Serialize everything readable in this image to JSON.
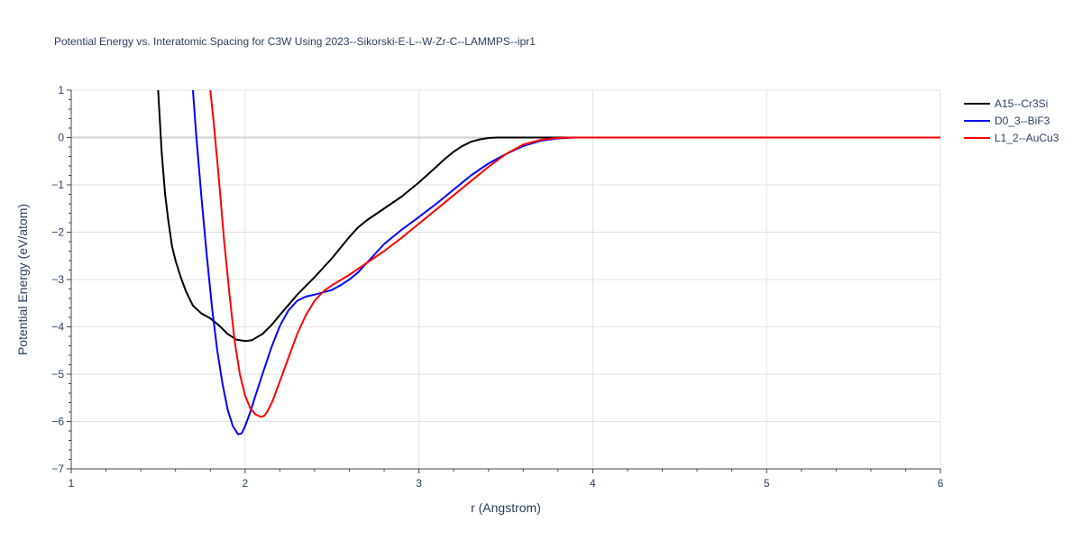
{
  "chart_data": {
    "type": "line",
    "title": "Potential Energy vs. Interatomic Spacing for C3W Using 2023--Sikorski-E-L--W-Zr-C--LAMMPS--ipr1",
    "xlabel": "r (Angstrom)",
    "ylabel": "Potential Energy (eV/atom)",
    "xlim": [
      1,
      6
    ],
    "ylim": [
      -7,
      1
    ],
    "x_ticks": [
      1,
      2,
      3,
      4,
      5,
      6
    ],
    "y_ticks": [
      1,
      0,
      -1,
      -2,
      -3,
      -4,
      -5,
      -6,
      -7
    ],
    "x_tick_labels": [
      "1",
      "2",
      "3",
      "4",
      "5",
      "6"
    ],
    "y_tick_labels": [
      "1",
      "0",
      "−1",
      "−2",
      "−3",
      "−4",
      "−5",
      "−6",
      "−7"
    ],
    "grid": true,
    "legend_position": "top-right",
    "series": [
      {
        "name": "A15--Cr3Si",
        "color": "#000000",
        "x": [
          1.5,
          1.52,
          1.54,
          1.56,
          1.58,
          1.6,
          1.63,
          1.66,
          1.7,
          1.75,
          1.8,
          1.85,
          1.9,
          1.95,
          2.0,
          2.04,
          2.1,
          2.15,
          2.2,
          2.3,
          2.4,
          2.5,
          2.6,
          2.65,
          2.7,
          2.8,
          2.9,
          3.0,
          3.1,
          3.15,
          3.2,
          3.25,
          3.3,
          3.35,
          3.4,
          3.45,
          3.5,
          3.6,
          3.7,
          3.8,
          3.9,
          4.0,
          4.5,
          5.0,
          5.5,
          6.0
        ],
        "y": [
          1.0,
          -0.3,
          -1.2,
          -1.8,
          -2.3,
          -2.6,
          -2.95,
          -3.25,
          -3.55,
          -3.72,
          -3.82,
          -3.97,
          -4.15,
          -4.27,
          -4.3,
          -4.28,
          -4.15,
          -3.97,
          -3.75,
          -3.32,
          -2.95,
          -2.55,
          -2.1,
          -1.9,
          -1.75,
          -1.5,
          -1.25,
          -0.95,
          -0.62,
          -0.45,
          -0.3,
          -0.18,
          -0.09,
          -0.04,
          -0.01,
          0.0,
          0.0,
          0.0,
          0.0,
          0.0,
          0.0,
          0.0,
          0.0,
          0.0,
          0.0,
          0.0
        ]
      },
      {
        "name": "D0_3--BiF3",
        "color": "#0000ff",
        "x": [
          1.7,
          1.72,
          1.75,
          1.78,
          1.81,
          1.84,
          1.87,
          1.9,
          1.93,
          1.96,
          1.98,
          2.0,
          2.03,
          2.06,
          2.1,
          2.15,
          2.2,
          2.25,
          2.3,
          2.35,
          2.4,
          2.5,
          2.55,
          2.6,
          2.65,
          2.7,
          2.8,
          2.9,
          3.0,
          3.1,
          3.2,
          3.3,
          3.4,
          3.5,
          3.6,
          3.7,
          3.8,
          3.9,
          4.0,
          4.5,
          5.0,
          5.5,
          6.0
        ],
        "y": [
          1.0,
          0.0,
          -1.3,
          -2.5,
          -3.6,
          -4.5,
          -5.2,
          -5.75,
          -6.1,
          -6.27,
          -6.25,
          -6.1,
          -5.8,
          -5.45,
          -5.0,
          -4.45,
          -3.98,
          -3.65,
          -3.45,
          -3.36,
          -3.32,
          -3.22,
          -3.12,
          -3.0,
          -2.85,
          -2.65,
          -2.25,
          -1.95,
          -1.68,
          -1.4,
          -1.1,
          -0.8,
          -0.55,
          -0.35,
          -0.18,
          -0.07,
          -0.02,
          0.0,
          0.0,
          0.0,
          0.0,
          0.0,
          0.0
        ]
      },
      {
        "name": "L1_2--AuCu3",
        "color": "#ff0000",
        "x": [
          1.8,
          1.82,
          1.85,
          1.88,
          1.91,
          1.94,
          1.97,
          2.0,
          2.03,
          2.06,
          2.09,
          2.11,
          2.13,
          2.16,
          2.2,
          2.25,
          2.3,
          2.35,
          2.4,
          2.45,
          2.5,
          2.6,
          2.7,
          2.8,
          2.9,
          3.0,
          3.1,
          3.2,
          3.3,
          3.4,
          3.5,
          3.6,
          3.7,
          3.8,
          3.9,
          4.0,
          4.5,
          5.0,
          5.5,
          6.0
        ],
        "y": [
          1.0,
          0.3,
          -0.9,
          -2.2,
          -3.3,
          -4.3,
          -5.0,
          -5.45,
          -5.72,
          -5.85,
          -5.9,
          -5.88,
          -5.78,
          -5.55,
          -5.15,
          -4.65,
          -4.15,
          -3.75,
          -3.45,
          -3.25,
          -3.12,
          -2.9,
          -2.65,
          -2.4,
          -2.12,
          -1.82,
          -1.52,
          -1.22,
          -0.92,
          -0.62,
          -0.35,
          -0.15,
          -0.05,
          -0.01,
          0.0,
          0.0,
          0.0,
          0.0,
          0.0,
          0.0
        ]
      }
    ]
  }
}
